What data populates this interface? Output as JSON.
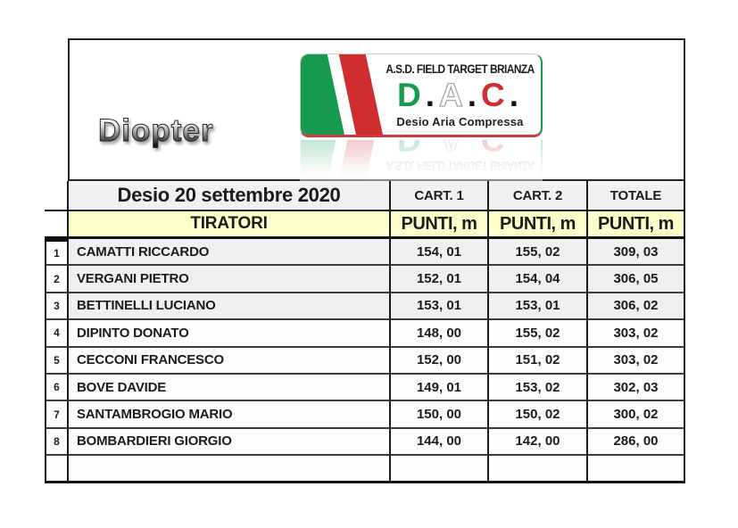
{
  "branding": {
    "diopter": "Diopter",
    "logo": {
      "org_line": "A.S.D. FIELD TARGET BRIANZA",
      "dac": {
        "d": "D",
        "a": "A",
        "c": "C",
        "dot": "."
      },
      "subtitle": "Desio Aria Compressa",
      "colors": {
        "flag_green": "#169a4f",
        "flag_red": "#d02d30",
        "dac_red": "#cf2a2d"
      }
    }
  },
  "table": {
    "event_title": "Desio 20 settembre 2020",
    "col_headers": [
      "CART. 1",
      "CART. 2",
      "TOTALE"
    ],
    "shooters_header": "TIRATORI",
    "points_header": "PUNTI, m",
    "header_bg": "#f1f1f1",
    "subheader_bg": "#ffffcc",
    "row_alt_bg": "#f0f0f0",
    "rows": [
      {
        "pos": "1",
        "name": "CAMATTI RICCARDO",
        "cart1": "154, 01",
        "cart2": "155, 02",
        "totale": "309, 03"
      },
      {
        "pos": "2",
        "name": "VERGANI PIETRO",
        "cart1": "152, 01",
        "cart2": "154, 04",
        "totale": "306, 05"
      },
      {
        "pos": "3",
        "name": "BETTINELLI LUCIANO",
        "cart1": "153, 01",
        "cart2": "153, 01",
        "totale": "306, 02"
      },
      {
        "pos": "4",
        "name": "DIPINTO DONATO",
        "cart1": "148, 00",
        "cart2": "155, 02",
        "totale": "303, 02"
      },
      {
        "pos": "5",
        "name": "CECCONI FRANCESCO",
        "cart1": "152, 00",
        "cart2": "151, 02",
        "totale": "303, 02"
      },
      {
        "pos": "6",
        "name": "BOVE DAVIDE",
        "cart1": "149, 01",
        "cart2": "153, 02",
        "totale": "302, 03"
      },
      {
        "pos": "7",
        "name": "SANTAMBROGIO MARIO",
        "cart1": "150, 00",
        "cart2": "150, 02",
        "totale": "300, 02"
      },
      {
        "pos": "8",
        "name": "BOMBARDIERI GIORGIO",
        "cart1": "144, 00",
        "cart2": "142, 00",
        "totale": "286, 00"
      }
    ]
  }
}
